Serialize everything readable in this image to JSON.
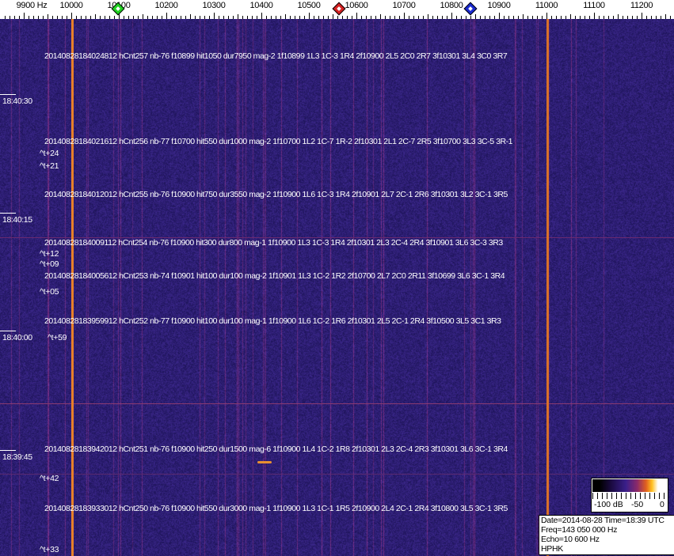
{
  "axis": {
    "unit_label": "9900 Hz",
    "ticks": [
      "10000",
      "10100",
      "10200",
      "10300",
      "10400",
      "10500",
      "10600",
      "10700",
      "10800",
      "10900",
      "11000",
      "11100",
      "11200"
    ],
    "markers": [
      {
        "name": "green",
        "freq_hz": 10100,
        "color": "#1fd11f"
      },
      {
        "name": "red",
        "freq_hz": 10565,
        "color": "#d42020"
      },
      {
        "name": "blue",
        "freq_hz": 10842,
        "color": "#1a2ad0"
      }
    ]
  },
  "colors": {
    "background": "#2c1e78",
    "carrier": "#e8802a",
    "streak": "#7a2a78"
  },
  "detections": [
    "20140828184024812 hCnt257 nb-76 f10899 hit1050 dur7950 mag-2 1f10899 1L3 1C-3 1R4 2f10900 2L5 2C0 2R7 3f10301 3L4 3C0 3R7",
    "20140828184021612 hCnt256 nb-77 f10700 hit550 dur1000 mag-2 1f10700 1L2 1C-7 1R-2 2f10301 2L1 2C-7 2R5 3f10700 3L3 3C-5 3R-1",
    "20140828184012012 hCnt255 nb-76 f10900 hit750 dur3550 mag-2 1f10900 1L6 1C-3 1R4 2f10901 2L7 2C-1 2R6 3f10301 3L2 3C-1 3R5",
    "20140828184009112 hCnt254 nb-76 f10900 hit300 dur800 mag-1 1f10900 1L3 1C-3 1R4 2f10301 2L3 2C-4 2R4 3f10901 3L6 3C-3 3R3",
    "20140828184005612 hCnt253 nb-74 f10901 hit100 dur100 mag-2 1f10901 1L3 1C-2 1R2 2f10700 2L7 2C0 2R11 3f10699 3L6 3C-1 3R4",
    "20140828183959912 hCnt252 nb-77 f10900 hit100 dur100 mag-1 1f10900 1L6 1C-2 1R6 2f10301 2L5 2C-1 2R4 3f10500 3L5 3C1 3R3",
    "20140828183942012 hCnt251 nb-76 f10900 hit250 dur1500 mag-6 1f10900 1L4 1C-2 1R8 2f10301 2L3 2C-4 2R3 3f10301 3L6 3C-1 3R4",
    "20140828183933012 hCnt250 nb-76 f10900 hit550 dur3000 mag-1 1f10900 1L3 1C-1 1R5 2f10900 2L4 2C-1 2R4 3f10800 3L5 3C-1 3R5"
  ],
  "timestamps": [
    "18:40:30",
    "18:40:15",
    "18:40:00",
    "18:39:45"
  ],
  "offsets": [
    "^t+24",
    "^t+21",
    "^t+12",
    "^t+09",
    "^t+05",
    "^t+59",
    "^t+42",
    "^t+33"
  ],
  "scale": {
    "labels": [
      "-100 dB",
      "-50",
      "0"
    ]
  },
  "info": {
    "date": "Date=2014-08-28 Time=18:39 UTC",
    "freq": "Freq=143 050 000 Hz",
    "echo": "Echo=10 600 Hz",
    "station": "HPHK"
  }
}
